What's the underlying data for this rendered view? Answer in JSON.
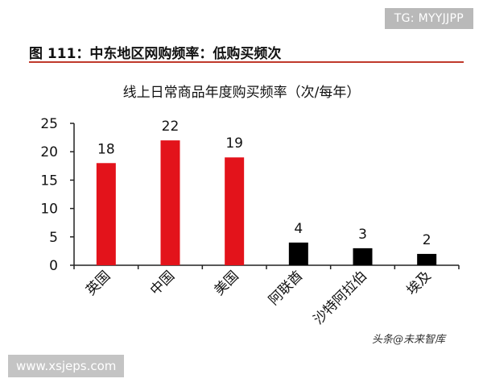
{
  "badge": "TG: MYYJJPP",
  "figure_title": "图 111：中东地区网购频率：低购买频次",
  "watermark_site": "www.xsjeps.com",
  "watermark_source": "头条@未来智库",
  "colors": {
    "red": "#e3131b",
    "black": "#000000",
    "rule": "#c0392b"
  },
  "chart_data": {
    "type": "bar",
    "title": "线上日常商品年度购买频率（次/每年）",
    "categories": [
      "英国",
      "中国",
      "美国",
      "阿联酋",
      "沙特阿拉伯",
      "埃及"
    ],
    "values": [
      18,
      22,
      19,
      4,
      3,
      2
    ],
    "bar_colors": [
      "#e3131b",
      "#e3131b",
      "#e3131b",
      "#000000",
      "#000000",
      "#000000"
    ],
    "ylim": [
      0,
      25
    ],
    "yticks": [
      0,
      5,
      10,
      15,
      20,
      25
    ],
    "xlabel": "",
    "ylabel": "",
    "grid": false,
    "legend": "none"
  }
}
